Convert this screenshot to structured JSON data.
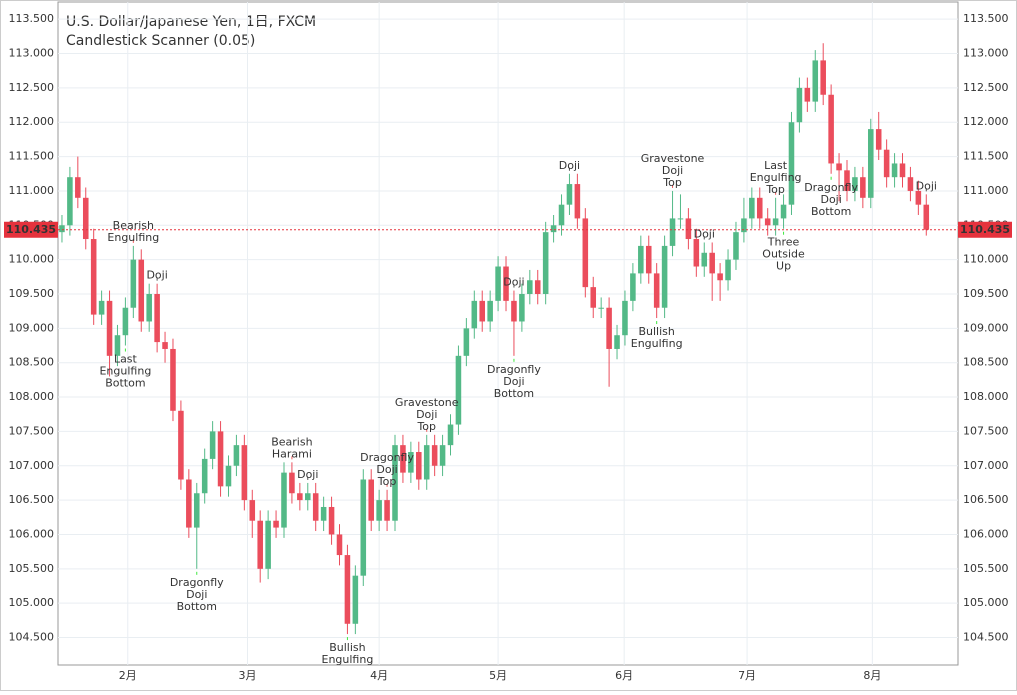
{
  "chart_data": {
    "type": "candlestick",
    "title": "U.S. Dollar/Japanese Yen, 1日, FXCM",
    "subtitle": "Candlestick Scanner (0.05)",
    "up_color": "#53b987",
    "down_color": "#eb4d5c",
    "grid": true,
    "series": {
      "open": [
        110.4,
        110.5,
        111.2,
        110.9,
        110.3,
        109.2,
        109.4,
        108.6,
        108.9,
        109.3,
        110.0,
        109.1,
        109.5,
        108.8,
        108.7,
        107.8,
        106.8,
        106.1,
        106.6,
        107.1,
        107.5,
        106.7,
        107.0,
        107.3,
        106.5,
        106.2,
        105.5,
        106.2,
        106.1,
        106.9,
        106.6,
        106.5,
        106.6,
        106.2,
        106.4,
        106.0,
        105.7,
        104.7,
        105.4,
        106.8,
        106.2,
        106.5,
        106.2,
        107.3,
        106.9,
        107.2,
        106.8,
        107.3,
        107.0,
        107.3,
        107.6,
        108.6,
        109.0,
        109.4,
        109.1,
        109.4,
        109.9,
        109.4,
        109.1,
        109.5,
        109.7,
        109.5,
        110.4,
        110.5,
        110.8,
        111.1,
        110.6,
        109.6,
        109.3,
        109.3,
        108.7,
        108.9,
        109.4,
        109.8,
        110.2,
        109.8,
        109.3,
        110.2,
        110.6,
        110.6,
        110.3,
        109.9,
        110.1,
        109.8,
        109.7,
        110.0,
        110.4,
        110.6,
        110.9,
        110.6,
        110.5,
        110.6,
        110.8,
        112.0,
        112.5,
        112.3,
        112.9,
        112.4,
        111.4,
        111.3,
        111.0,
        111.2,
        110.9,
        111.9,
        111.6,
        111.2,
        111.4,
        111.2,
        111.0,
        110.8
      ],
      "high": [
        110.65,
        111.35,
        111.5,
        111.05,
        110.45,
        109.55,
        109.55,
        109.05,
        109.45,
        110.2,
        110.15,
        109.65,
        109.65,
        108.95,
        108.85,
        107.95,
        106.95,
        106.75,
        107.25,
        107.65,
        107.65,
        107.15,
        107.45,
        107.45,
        106.65,
        106.35,
        106.35,
        106.35,
        107.05,
        107.05,
        106.75,
        106.75,
        106.75,
        106.55,
        106.55,
        106.15,
        105.85,
        105.55,
        106.95,
        106.95,
        106.65,
        106.65,
        107.45,
        107.45,
        107.35,
        107.35,
        107.45,
        107.45,
        107.45,
        107.75,
        108.75,
        109.15,
        109.55,
        109.55,
        109.55,
        110.05,
        110.05,
        109.55,
        109.65,
        109.85,
        109.85,
        110.55,
        110.65,
        110.95,
        111.25,
        111.25,
        110.75,
        109.75,
        109.45,
        109.45,
        109.05,
        109.55,
        109.95,
        110.35,
        110.35,
        109.95,
        110.35,
        111.0,
        110.95,
        110.75,
        110.45,
        110.25,
        110.25,
        109.95,
        110.15,
        110.55,
        110.9,
        111.05,
        111.05,
        110.75,
        110.9,
        110.95,
        112.15,
        112.65,
        112.65,
        113.05,
        113.15,
        112.55,
        111.55,
        111.45,
        111.35,
        111.35,
        112.05,
        112.15,
        111.75,
        111.55,
        111.55,
        111.35,
        111.15,
        110.95
      ],
      "low": [
        110.25,
        110.35,
        110.75,
        110.15,
        109.05,
        109.05,
        108.3,
        108.45,
        108.75,
        109.15,
        108.95,
        108.95,
        108.65,
        108.5,
        107.65,
        106.65,
        105.95,
        105.5,
        106.45,
        106.95,
        106.55,
        106.55,
        106.85,
        106.35,
        105.95,
        105.3,
        105.35,
        105.95,
        105.95,
        106.45,
        106.35,
        106.35,
        106.05,
        106.05,
        105.85,
        105.55,
        104.55,
        104.55,
        105.25,
        106.05,
        106.05,
        106.05,
        106.05,
        106.75,
        106.75,
        106.65,
        106.65,
        106.85,
        106.85,
        107.15,
        107.45,
        108.45,
        108.85,
        108.95,
        108.95,
        109.25,
        109.25,
        108.6,
        108.95,
        109.35,
        109.35,
        109.35,
        110.25,
        110.35,
        110.65,
        110.45,
        109.45,
        109.15,
        109.15,
        108.15,
        108.55,
        108.75,
        109.25,
        109.65,
        109.65,
        109.15,
        109.15,
        110.05,
        110.45,
        110.15,
        109.75,
        109.75,
        109.4,
        109.4,
        109.55,
        109.85,
        110.25,
        110.45,
        110.45,
        110.35,
        110.35,
        110.45,
        110.65,
        111.85,
        112.15,
        112.15,
        112.25,
        111.25,
        110.85,
        110.85,
        110.85,
        110.75,
        110.75,
        111.45,
        111.05,
        111.05,
        111.05,
        110.85,
        110.65,
        110.35
      ],
      "close": [
        110.5,
        111.2,
        110.9,
        110.3,
        109.2,
        109.4,
        108.6,
        108.9,
        109.3,
        110.0,
        109.1,
        109.5,
        108.8,
        108.7,
        107.8,
        106.8,
        106.1,
        106.6,
        107.1,
        107.5,
        106.7,
        107.0,
        107.3,
        106.5,
        106.2,
        105.5,
        106.2,
        106.1,
        106.9,
        106.6,
        106.5,
        106.6,
        106.2,
        106.4,
        106.0,
        105.7,
        104.7,
        105.4,
        106.8,
        106.2,
        106.5,
        106.2,
        107.3,
        106.9,
        107.2,
        106.8,
        107.3,
        107.0,
        107.3,
        107.6,
        108.6,
        109.0,
        109.4,
        109.1,
        109.4,
        109.9,
        109.4,
        109.1,
        109.5,
        109.7,
        109.5,
        110.4,
        110.5,
        110.8,
        111.1,
        110.6,
        109.6,
        109.3,
        109.3,
        108.7,
        108.9,
        109.4,
        109.8,
        110.2,
        109.8,
        109.3,
        110.2,
        110.6,
        110.6,
        110.3,
        109.9,
        110.1,
        109.8,
        109.7,
        110.0,
        110.4,
        110.6,
        110.9,
        110.6,
        110.5,
        110.6,
        110.8,
        112.0,
        112.5,
        112.3,
        112.9,
        112.4,
        111.4,
        111.3,
        111.0,
        111.2,
        110.9,
        111.9,
        111.6,
        111.2,
        111.4,
        111.2,
        111.0,
        110.8,
        110.435
      ]
    },
    "xlim": [
      -0.5,
      113
    ],
    "xticks": [
      {
        "value": 8.3,
        "label": "2月"
      },
      {
        "value": 23.4,
        "label": "3月"
      },
      {
        "value": 40,
        "label": "4月"
      },
      {
        "value": 55,
        "label": "5月"
      },
      {
        "value": 70.9,
        "label": "6月"
      },
      {
        "value": 86.4,
        "label": "7月"
      },
      {
        "value": 102.2,
        "label": "8月"
      }
    ],
    "ylim": [
      104.1,
      113.75
    ],
    "yticks": [
      {
        "value": 104.5,
        "label": "104.500"
      },
      {
        "value": 105,
        "label": "105.000"
      },
      {
        "value": 105.5,
        "label": "105.500"
      },
      {
        "value": 106,
        "label": "106.000"
      },
      {
        "value": 106.5,
        "label": "106.500"
      },
      {
        "value": 107,
        "label": "107.000"
      },
      {
        "value": 107.5,
        "label": "107.500"
      },
      {
        "value": 108,
        "label": "108.000"
      },
      {
        "value": 108.5,
        "label": "108.500"
      },
      {
        "value": 109,
        "label": "109.000"
      },
      {
        "value": 109.5,
        "label": "109.500"
      },
      {
        "value": 110,
        "label": "110.000"
      },
      {
        "value": 110.5,
        "label": "110.500"
      },
      {
        "value": 111,
        "label": "111.000"
      },
      {
        "value": 111.5,
        "label": "111.500"
      },
      {
        "value": 112,
        "label": "112.000"
      },
      {
        "value": 112.5,
        "label": "112.500"
      },
      {
        "value": 113,
        "label": "113.000"
      },
      {
        "value": 113.5,
        "label": "113.500"
      }
    ],
    "last_price": {
      "value": 110.435,
      "label": "110.435",
      "color": "#e5323d"
    },
    "annotation_colors": {
      "bearish": "#f05a5a",
      "bullish": "#3ee83e",
      "neutral": "#555555"
    },
    "annotations": [
      {
        "candle": 9,
        "kind": "bearish",
        "lines": [
          "Bearish",
          "Engulfing"
        ]
      },
      {
        "candle": 12,
        "kind": "neutral",
        "lines": [
          "Doji"
        ]
      },
      {
        "candle": 8,
        "kind": "bullish",
        "lines": [
          "Last",
          "Engulfing",
          "Bottom"
        ]
      },
      {
        "candle": 17,
        "kind": "bullish",
        "lines": [
          "Dragonfly",
          "Doji",
          "Bottom"
        ]
      },
      {
        "candle": 29,
        "kind": "bearish",
        "lines": [
          "Bearish",
          "Harami"
        ]
      },
      {
        "candle": 31,
        "kind": "neutral",
        "lines": [
          "Doji"
        ]
      },
      {
        "candle": 36,
        "kind": "bullish",
        "lines": [
          "Bullish",
          "Engulfing"
        ]
      },
      {
        "candle": 41,
        "kind": "bearish",
        "lines": [
          "Dragonfly",
          "Doji",
          "Top"
        ]
      },
      {
        "candle": 46,
        "kind": "bearish",
        "lines": [
          "Gravestone",
          "Doji",
          "Top"
        ]
      },
      {
        "candle": 57,
        "kind": "neutral",
        "lines": [
          "Doji"
        ]
      },
      {
        "candle": 57,
        "kind": "bullish",
        "lines": [
          "Dragonfly",
          "Doji",
          "Bottom"
        ]
      },
      {
        "candle": 64,
        "kind": "neutral",
        "lines": [
          "Doji"
        ]
      },
      {
        "candle": 77,
        "kind": "bearish",
        "lines": [
          "Gravestone",
          "Doji",
          "Top"
        ]
      },
      {
        "candle": 75,
        "kind": "bullish",
        "lines": [
          "Bullish",
          "Engulfing"
        ]
      },
      {
        "candle": 81,
        "kind": "neutral",
        "lines": [
          "Doji"
        ]
      },
      {
        "candle": 90,
        "kind": "bearish",
        "lines": [
          "Last",
          "Engulfing",
          "Top"
        ]
      },
      {
        "candle": 91,
        "kind": "bullish",
        "lines": [
          "Three",
          "Outside",
          "Up"
        ]
      },
      {
        "candle": 97,
        "kind": "bullish",
        "lines": [
          "Dragonfly",
          "Doji",
          "Bottom"
        ]
      },
      {
        "candle": 109,
        "kind": "neutral",
        "lines": [
          "Doji"
        ]
      }
    ]
  }
}
